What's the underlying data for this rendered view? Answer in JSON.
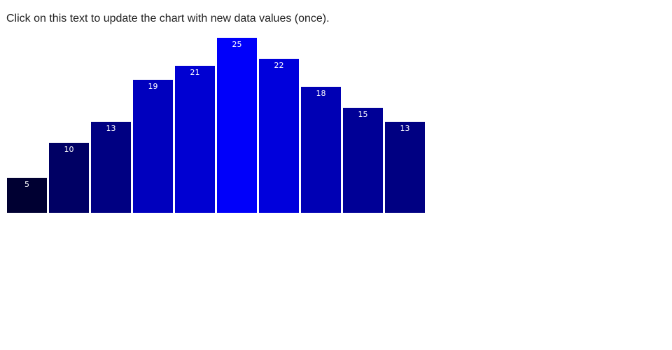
{
  "header": {
    "update_text": "Click on this text to update the chart with new data values (once)."
  },
  "chart_data": {
    "type": "bar",
    "values": [
      5,
      10,
      13,
      19,
      21,
      25,
      22,
      18,
      15,
      13
    ],
    "data_labels": [
      "5",
      "10",
      "13",
      "19",
      "21",
      "25",
      "22",
      "18",
      "15",
      "13"
    ],
    "bar_colors": [
      "#000032",
      "#000064",
      "#000082",
      "#0000be",
      "#0000d2",
      "#0000fa",
      "#0000dc",
      "#0000b4",
      "#000096",
      "#000082"
    ],
    "label_color": "#ffffff",
    "ylim": [
      0,
      25
    ],
    "pixels_per_unit": 10,
    "axes_visible": false,
    "grid": false,
    "legend": false,
    "background_color": "#ffffff"
  }
}
